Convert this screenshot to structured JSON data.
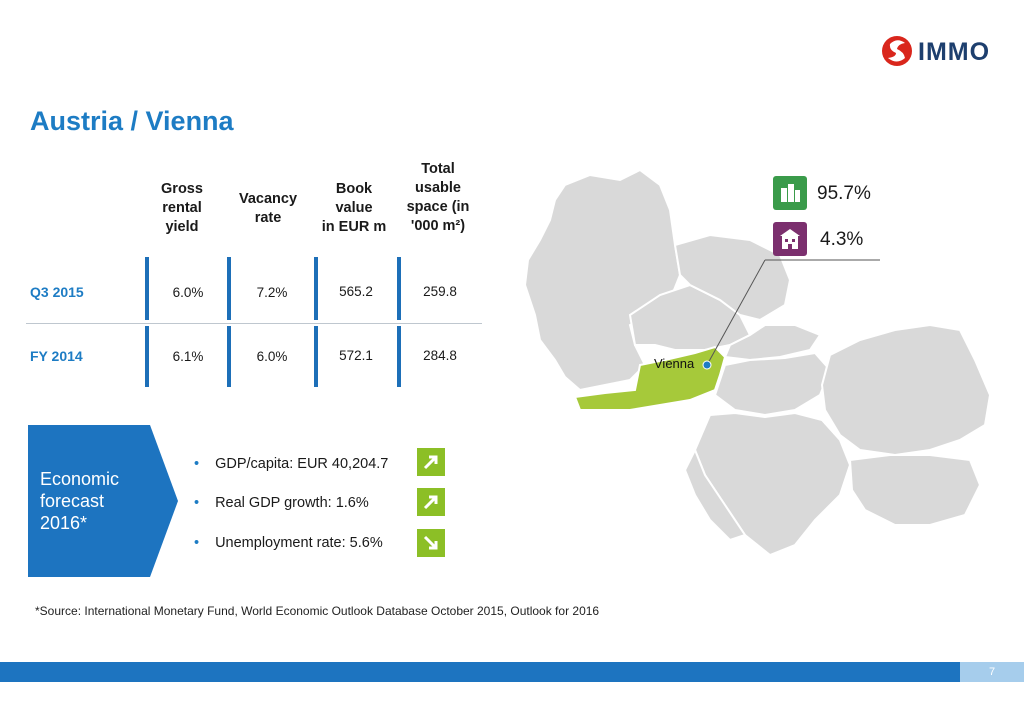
{
  "brand": {
    "logo_text": "IMMO",
    "accent": "#1d7cc4",
    "logo_red": "#d9261c"
  },
  "page_title": "Austria / Vienna",
  "table": {
    "headers": [
      "Gross\nrental\nyield",
      "Vacancy\nrate",
      "Book\nvalue\nin EUR m",
      "Total\nusable\nspace (in\n'000 m²)"
    ],
    "rows": [
      {
        "label": "Q3 2015",
        "values": [
          "6.0%",
          "7.2%",
          "565.2",
          "259.8"
        ]
      },
      {
        "label": "FY 2014",
        "values": [
          "6.1%",
          "6.0%",
          "572.1",
          "284.8"
        ]
      }
    ]
  },
  "forecast": {
    "label": "Economic forecast 2016*",
    "items": [
      {
        "text": "GDP/capita: EUR 40,204.7",
        "trend": "arrow-up-right-icon"
      },
      {
        "text": "Real GDP growth: 1.6%",
        "trend": "arrow-up-right-icon"
      },
      {
        "text": "Unemployment rate: 5.6%",
        "trend": "arrow-down-right-icon"
      }
    ],
    "trend_color": "#8cbf26"
  },
  "map": {
    "city": "Vienna",
    "highlight_color": "#a6c93a",
    "stats": [
      {
        "icon": "office-building-icon",
        "value": "95.7%",
        "color": "#3a9b4a"
      },
      {
        "icon": "apartment-building-icon",
        "value": "4.3%",
        "color": "#7b2f6e"
      }
    ]
  },
  "source_note": "*Source: International Monetary Fund, World Economic Outlook Database October 2015, Outlook for 2016",
  "page_number": "7"
}
